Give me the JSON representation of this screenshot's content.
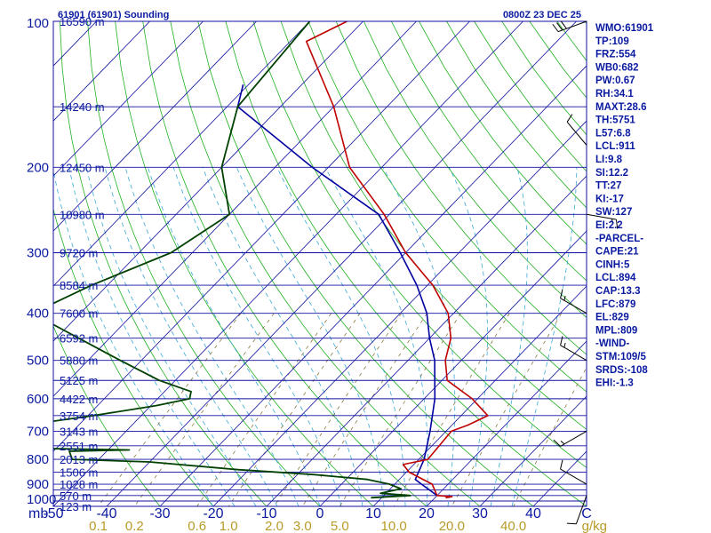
{
  "header": {
    "station": "61901 (61901) Sounding",
    "valid_time": "0800Z 23 DEC 25"
  },
  "indices": [
    "WMO:61901",
    "TP:109",
    "FRZ:554",
    "WB0:682",
    "PW:0.67",
    "RH:34.1",
    "MAXT:28.6",
    "TH:5751",
    "L57:6.8",
    "LCL:911",
    "LI:9.8",
    "SI:12.2",
    "TT:27",
    "KI:-17",
    "SW:127",
    "EI:2.2",
    "-PARCEL-",
    "CAPE:21",
    "CINH:5",
    "LCL:894",
    "CAP:13.3",
    "LFC:879",
    "EL:829",
    "MPL:809",
    "-WIND-",
    "STM:109/5",
    "SRDS:-108",
    "EHI:-1.3"
  ],
  "axes": {
    "pressure_ticks": [
      "100",
      "200",
      "300",
      "400",
      "500",
      "600",
      "700",
      "800",
      "900",
      "1000"
    ],
    "pressure_levels": [
      100,
      150,
      200,
      250,
      300,
      350,
      400,
      450,
      500,
      550,
      600,
      650,
      700,
      750,
      800,
      850,
      900,
      925,
      950,
      975,
      1000
    ],
    "height_labels": [
      {
        "p": 100,
        "label": "16590 m"
      },
      {
        "p": 150,
        "label": "14240 m"
      },
      {
        "p": 200,
        "label": "12450 m"
      },
      {
        "p": 250,
        "label": "10980 m"
      },
      {
        "p": 300,
        "label": "9720 m"
      },
      {
        "p": 350,
        "label": "8584 m"
      },
      {
        "p": 400,
        "label": "7600 m"
      },
      {
        "p": 450,
        "label": "6592 m"
      },
      {
        "p": 500,
        "label": "5880 m"
      },
      {
        "p": 550,
        "label": "5125 m"
      },
      {
        "p": 600,
        "label": "4422 m"
      },
      {
        "p": 650,
        "label": "3754 m"
      },
      {
        "p": 700,
        "label": "3143 m"
      },
      {
        "p": 750,
        "label": "2551 m"
      },
      {
        "p": 800,
        "label": "2013 m"
      },
      {
        "p": 850,
        "label": "1506 m"
      },
      {
        "p": 900,
        "label": "1028 m"
      },
      {
        "p": 950,
        "label": "570 m"
      },
      {
        "p": 1000,
        "label": "123 m"
      }
    ],
    "pressure_unit": "mb",
    "temperature_ticks": [
      "-50",
      "-40",
      "-30",
      "-20",
      "-10",
      "0",
      "10",
      "20",
      "30",
      "40",
      "C"
    ],
    "mixing_ratio_ticks": [
      "0.1",
      "0.2",
      "0.6",
      "1.0",
      "2.0",
      "3.0",
      "5.0",
      "10.0",
      "20.0",
      "40.0"
    ],
    "mixing_ratio_unit": "g/kg"
  },
  "chart_data": {
    "type": "line",
    "temperature_profile": [
      {
        "p": 100,
        "t": -83
      },
      {
        "p": 110,
        "t": -87
      },
      {
        "p": 150,
        "t": -70
      },
      {
        "p": 200,
        "t": -56
      },
      {
        "p": 250,
        "t": -41
      },
      {
        "p": 300,
        "t": -30
      },
      {
        "p": 350,
        "t": -19
      },
      {
        "p": 400,
        "t": -11
      },
      {
        "p": 450,
        "t": -6
      },
      {
        "p": 500,
        "t": -3
      },
      {
        "p": 550,
        "t": 1
      },
      {
        "p": 600,
        "t": 9
      },
      {
        "p": 650,
        "t": 15
      },
      {
        "p": 680,
        "t": 13
      },
      {
        "p": 700,
        "t": 11
      },
      {
        "p": 800,
        "t": 11.7
      },
      {
        "p": 820,
        "t": 8
      },
      {
        "p": 850,
        "t": 10.5
      },
      {
        "p": 900,
        "t": 17
      },
      {
        "p": 950,
        "t": 20
      },
      {
        "p": 955,
        "t": 23
      },
      {
        "p": 960,
        "t": 22
      }
    ],
    "dewpoint_profile": [
      {
        "p": 100,
        "t": -90
      },
      {
        "p": 150,
        "t": -88
      },
      {
        "p": 200,
        "t": -80
      },
      {
        "p": 250,
        "t": -70
      },
      {
        "p": 300,
        "t": -74
      },
      {
        "p": 350,
        "t": -83
      },
      {
        "p": 400,
        "t": -89
      },
      {
        "p": 500,
        "t": -64
      },
      {
        "p": 550,
        "t": -53
      },
      {
        "p": 580,
        "t": -45
      },
      {
        "p": 600,
        "t": -44
      },
      {
        "p": 620,
        "t": -49
      },
      {
        "p": 650,
        "t": -59
      },
      {
        "p": 680,
        "t": -70
      },
      {
        "p": 700,
        "t": -64
      },
      {
        "p": 760,
        "t": -62
      },
      {
        "p": 765,
        "t": -46
      },
      {
        "p": 770,
        "t": -57
      },
      {
        "p": 800,
        "t": -55
      },
      {
        "p": 810,
        "t": -40
      },
      {
        "p": 840,
        "t": -22
      },
      {
        "p": 860,
        "t": -7
      },
      {
        "p": 880,
        "t": 4
      },
      {
        "p": 900,
        "t": 9
      },
      {
        "p": 920,
        "t": 12
      },
      {
        "p": 940,
        "t": 9
      },
      {
        "p": 950,
        "t": 15
      },
      {
        "p": 960,
        "t": 8
      }
    ],
    "parcel_trace": [
      {
        "p": 135,
        "t": -91
      },
      {
        "p": 150,
        "t": -88
      },
      {
        "p": 200,
        "t": -63
      },
      {
        "p": 250,
        "t": -42
      },
      {
        "p": 300,
        "t": -31
      },
      {
        "p": 350,
        "t": -22
      },
      {
        "p": 400,
        "t": -15
      },
      {
        "p": 450,
        "t": -10
      },
      {
        "p": 500,
        "t": -5
      },
      {
        "p": 600,
        "t": 2
      },
      {
        "p": 700,
        "t": 7
      },
      {
        "p": 800,
        "t": 11
      },
      {
        "p": 880,
        "t": 13
      },
      {
        "p": 900,
        "t": 15
      },
      {
        "p": 950,
        "t": 20
      }
    ],
    "p_range": [
      100,
      1000
    ],
    "t_range_at_bottom": [
      -50,
      50
    ],
    "mixing_ratio_values": [
      0.1,
      0.2,
      0.6,
      1.0,
      2.0,
      3.0,
      5.0,
      10.0,
      20.0,
      40.0
    ],
    "wind_barbs": [
      {
        "p": 100,
        "dir": 250,
        "spd": 30
      },
      {
        "p": 180,
        "dir": 320,
        "spd": 10
      },
      {
        "p": 250,
        "dir": 100,
        "spd": 5
      },
      {
        "p": 400,
        "dir": 300,
        "spd": 5
      },
      {
        "p": 500,
        "dir": 300,
        "spd": 5
      },
      {
        "p": 700,
        "dir": 240,
        "spd": 5
      },
      {
        "p": 900,
        "dir": 300,
        "spd": 10
      },
      {
        "p": 950,
        "dir": 200,
        "spd": 10
      }
    ],
    "colors": {
      "temperature": "#c00000",
      "dewpoint": "#004000",
      "parcel": "#0000a0",
      "isobar": "#1010a0",
      "isotherm": "#1010a0",
      "dry_adiabat": "#20b020",
      "moist_adiabat": "#3aa8d8",
      "mixing_ratio": "#8a7a40",
      "frame": "#1010a0"
    }
  }
}
